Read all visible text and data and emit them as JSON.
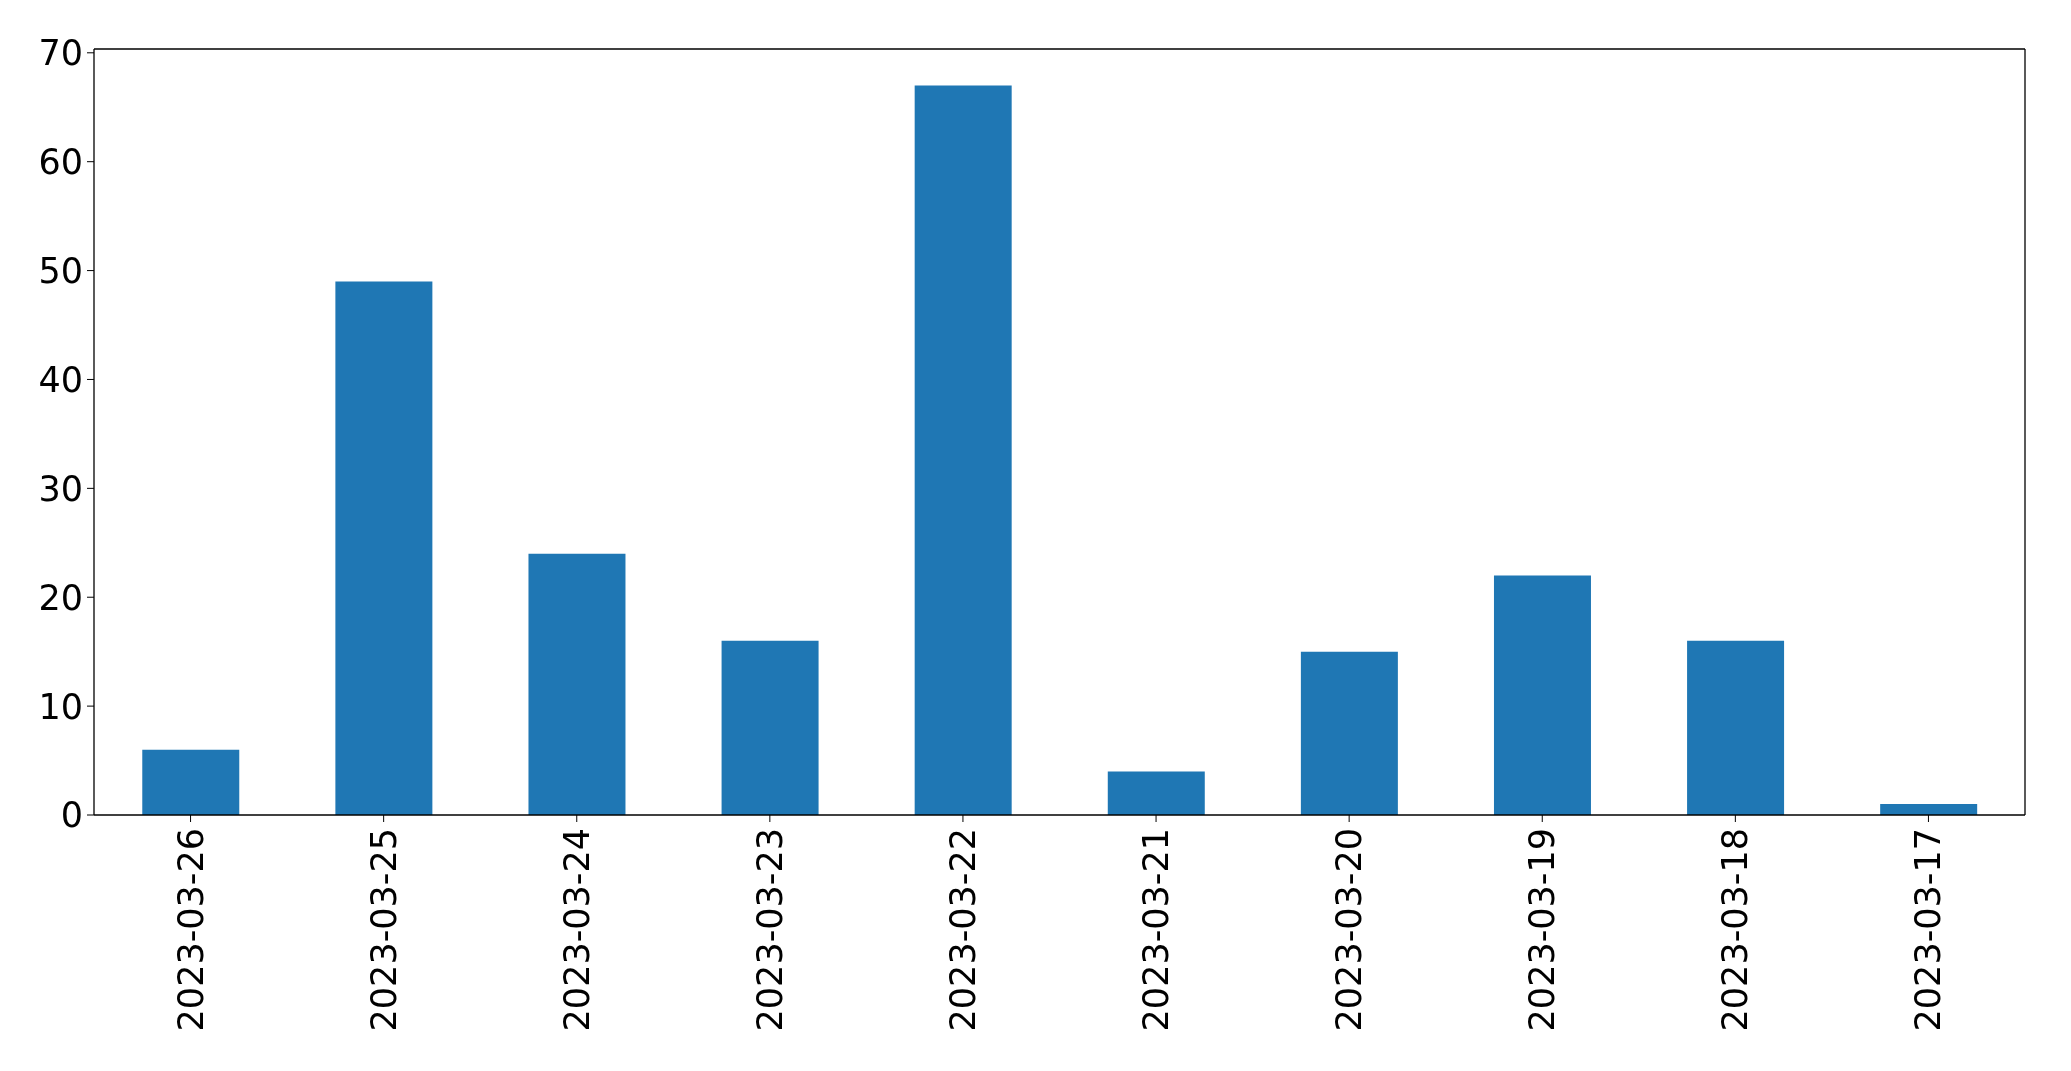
{
  "chart_data": {
    "type": "bar",
    "categories": [
      "2023-03-26",
      "2023-03-25",
      "2023-03-24",
      "2023-03-23",
      "2023-03-22",
      "2023-03-21",
      "2023-03-20",
      "2023-03-19",
      "2023-03-18",
      "2023-03-17"
    ],
    "values": [
      6,
      49,
      24,
      16,
      67,
      4,
      15,
      22,
      16,
      1
    ],
    "color": "#1f77b4",
    "ylim": [
      0,
      70.35
    ],
    "yticks": [
      0,
      10,
      20,
      30,
      40,
      50,
      60,
      70
    ]
  }
}
